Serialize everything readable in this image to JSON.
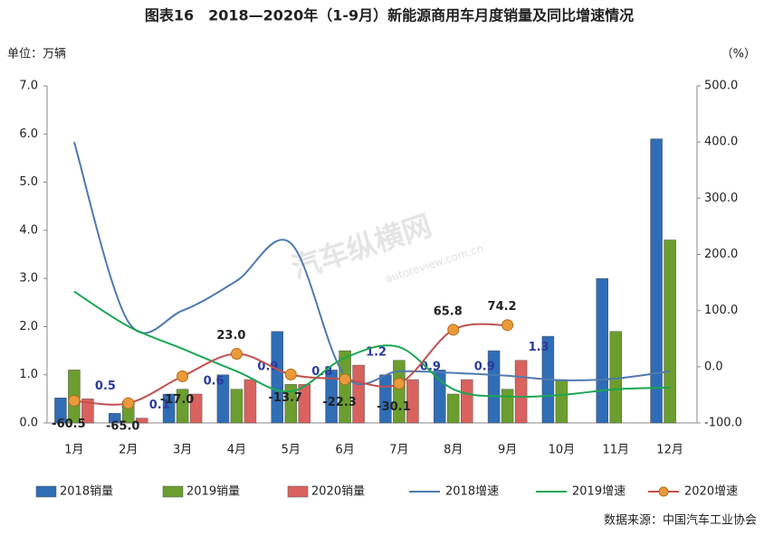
{
  "chart_data": {
    "type": "bar-line",
    "title": "图表16　2018—2020年（1-9月）新能源商用车月度销量及同比增速情况",
    "y_label": "单位：万辆",
    "y2_label": "（%）",
    "source": "数据来源：中国汽车工业协会",
    "watermark": "汽车纵横网",
    "watermark_url": "autoreview.com.cn",
    "categories": [
      "1月",
      "2月",
      "3月",
      "4月",
      "5月",
      "6月",
      "7月",
      "8月",
      "9月",
      "10月",
      "11月",
      "12月"
    ],
    "ylim": [
      0,
      7
    ],
    "yticks": [
      {
        "value": 0,
        "label": "0.0"
      },
      {
        "value": 1,
        "label": "1.0"
      },
      {
        "value": 2,
        "label": "2.0"
      },
      {
        "value": 3,
        "label": "3.0"
      },
      {
        "value": 4,
        "label": "4.0"
      },
      {
        "value": 5,
        "label": "5.0"
      },
      {
        "value": 6,
        "label": "6.0"
      },
      {
        "value": 7,
        "label": "7.0"
      }
    ],
    "y2lim": [
      -100,
      500
    ],
    "y2ticks": [
      {
        "value": -100,
        "label": "-100.0"
      },
      {
        "value": 0,
        "label": "0.0"
      },
      {
        "value": 100,
        "label": "100.0"
      },
      {
        "value": 200,
        "label": "200.0"
      },
      {
        "value": 300,
        "label": "300.0"
      },
      {
        "value": 400,
        "label": "400.0"
      },
      {
        "value": 500,
        "label": "500.0"
      }
    ],
    "series": [
      {
        "name": "2018销量",
        "kind": "bar",
        "color": "#2f6db6",
        "values": [
          0.52,
          0.2,
          0.6,
          1.0,
          1.9,
          1.1,
          1.0,
          1.1,
          1.5,
          1.8,
          3.0,
          5.9
        ]
      },
      {
        "name": "2019销量",
        "kind": "bar",
        "color": "#6b9e2e",
        "values": [
          1.1,
          0.45,
          0.7,
          0.7,
          0.8,
          1.5,
          1.3,
          0.6,
          0.7,
          0.9,
          1.9,
          3.8
        ]
      },
      {
        "name": "2020销量",
        "kind": "bar",
        "color": "#d9625e",
        "values": [
          0.5,
          0.1,
          0.6,
          0.9,
          0.8,
          1.2,
          0.9,
          0.9,
          1.3,
          null,
          null,
          null
        ],
        "label_color": "#2b3b9e"
      },
      {
        "name": "2018增速",
        "kind": "line",
        "axis": "y2",
        "color": "#4f79b0",
        "values": [
          400,
          80,
          100,
          153,
          220,
          -16,
          -8,
          -11,
          -16,
          -24,
          -21,
          -8
        ]
      },
      {
        "name": "2019增速",
        "kind": "line",
        "axis": "y2",
        "color": "#1aa652",
        "values": [
          134,
          72,
          32,
          -8,
          -44,
          16,
          35,
          -40,
          -53,
          -50,
          -40,
          -37
        ]
      },
      {
        "name": "2020增速",
        "kind": "line",
        "axis": "y2",
        "color": "#c0504d",
        "marker_color": "#eb9a3a",
        "values": [
          -60.5,
          -65.0,
          -17.0,
          23.0,
          -13.7,
          -22.3,
          -30.1,
          65.8,
          74.2,
          null,
          null,
          null
        ],
        "value_labels": [
          "-60.5",
          "-65.0",
          "-17.0",
          "23.0",
          "-13.7",
          "-22.3",
          "-30.1",
          "65.8",
          "74.2",
          null,
          null,
          null
        ]
      }
    ]
  }
}
